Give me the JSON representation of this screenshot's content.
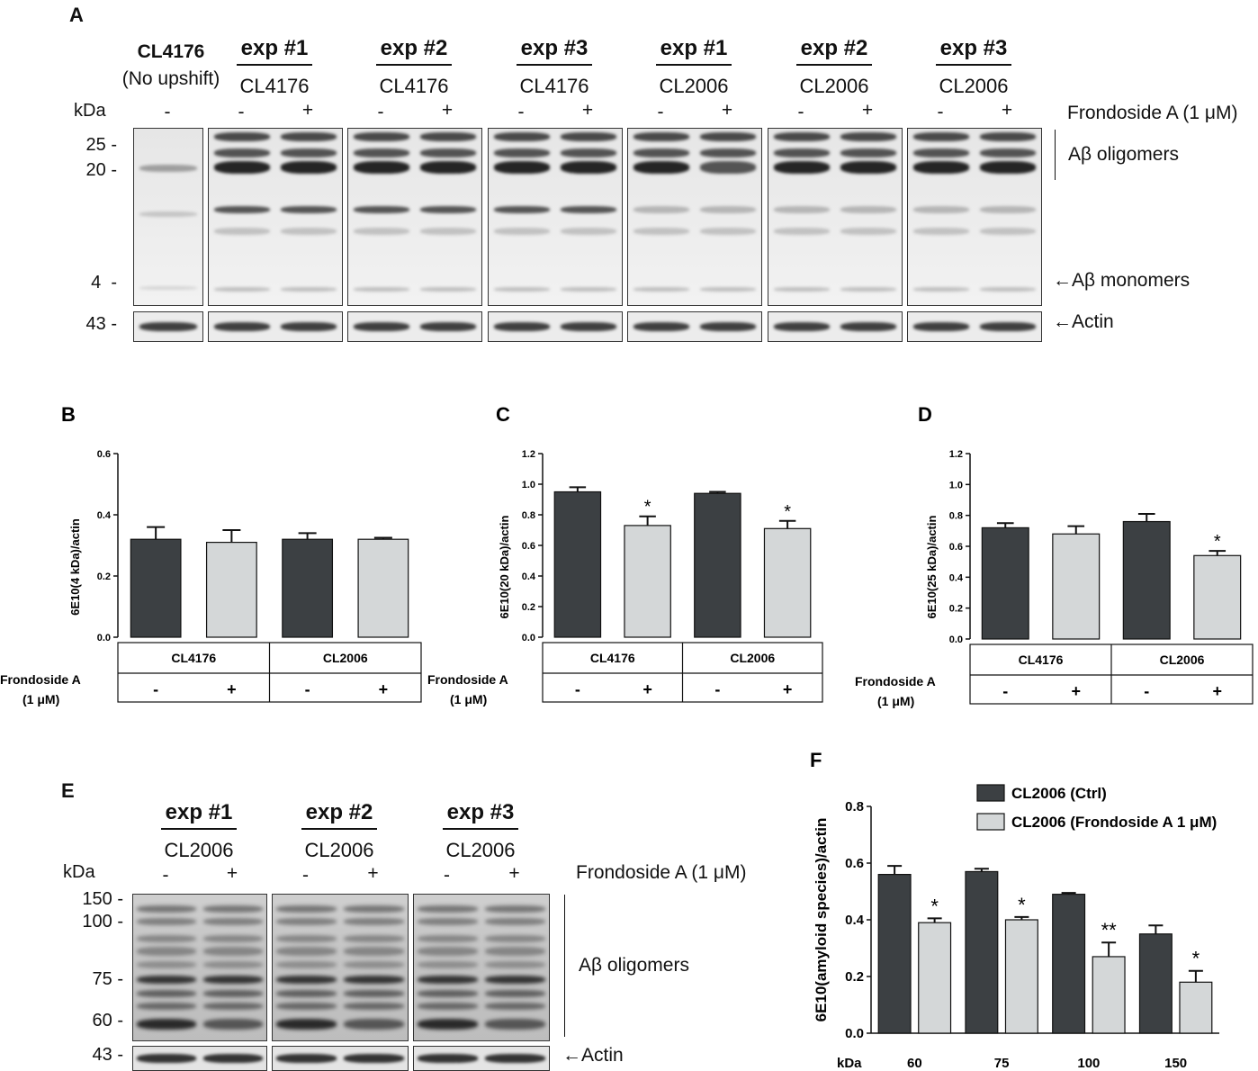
{
  "panel_a": {
    "letter": "A",
    "ctrl_title": "CL4176",
    "ctrl_subtitle": "(No upshift)",
    "groups": [
      {
        "exp": "exp #1",
        "strain": "CL4176"
      },
      {
        "exp": "exp #2",
        "strain": "CL4176"
      },
      {
        "exp": "exp #3",
        "strain": "CL4176"
      },
      {
        "exp": "exp #1",
        "strain": "CL2006"
      },
      {
        "exp": "exp #2",
        "strain": "CL2006"
      },
      {
        "exp": "exp #3",
        "strain": "CL2006"
      }
    ],
    "kda": "kDa",
    "minus": "-",
    "plus": "+",
    "treatment": "Frondoside A (1 μM)",
    "markers": [
      "25 -",
      "20 -",
      "4  -",
      "43 -"
    ],
    "oligomers": "Aβ oligomers",
    "monomers": "←Aβ monomers",
    "actin": "←Actin"
  },
  "panel_e": {
    "letter": "E",
    "groups": [
      {
        "exp": "exp #1",
        "strain": "CL2006"
      },
      {
        "exp": "exp #2",
        "strain": "CL2006"
      },
      {
        "exp": "exp #3",
        "strain": "CL2006"
      }
    ],
    "kda": "kDa",
    "minus": "-",
    "plus": "+",
    "treatment": "Frondoside A (1 μM)",
    "markers": [
      "150 -",
      "100 -",
      "75 -",
      "60 -",
      "43 -"
    ],
    "oligomers": "Aβ oligomers",
    "actin": "←Actin"
  },
  "chart_data": [
    {
      "panel": "B",
      "type": "bar",
      "ylabel": "6E10(4 kDa)/actin",
      "ylim": [
        0,
        0.6
      ],
      "yticks": [
        "0.0",
        "0.2",
        "0.4",
        "0.6"
      ],
      "categories": [
        "CL4176 -",
        "CL4176 +",
        "CL2006 -",
        "CL2006 +"
      ],
      "values": [
        0.32,
        0.31,
        0.32,
        0.32
      ],
      "errors": [
        0.04,
        0.04,
        0.02,
        0.005
      ],
      "colors": [
        "#3c4043",
        "#d4d7d8",
        "#3c4043",
        "#d4d7d8"
      ],
      "significance": [
        "",
        "",
        "",
        ""
      ],
      "table": {
        "strains": [
          "CL4176",
          "CL2006"
        ],
        "treatment_label": [
          "Frondoside A",
          "(1 μM)"
        ],
        "signs": [
          "-",
          "+",
          "-",
          "+"
        ]
      }
    },
    {
      "panel": "C",
      "type": "bar",
      "ylabel": "6E10(20 kDa)/actin",
      "ylim": [
        0,
        1.2
      ],
      "yticks": [
        "0.0",
        "0.2",
        "0.4",
        "0.6",
        "0.8",
        "1.0",
        "1.2"
      ],
      "categories": [
        "CL4176 -",
        "CL4176 +",
        "CL2006 -",
        "CL2006 +"
      ],
      "values": [
        0.95,
        0.73,
        0.94,
        0.71
      ],
      "errors": [
        0.03,
        0.06,
        0.01,
        0.05
      ],
      "colors": [
        "#3c4043",
        "#d4d7d8",
        "#3c4043",
        "#d4d7d8"
      ],
      "significance": [
        "",
        "*",
        "",
        "*"
      ],
      "table": {
        "strains": [
          "CL4176",
          "CL2006"
        ],
        "treatment_label": [
          "Frondoside A",
          "(1 μM)"
        ],
        "signs": [
          "-",
          "+",
          "-",
          "+"
        ]
      }
    },
    {
      "panel": "D",
      "type": "bar",
      "ylabel": "6E10(25 kDa)/actin",
      "ylim": [
        0,
        1.2
      ],
      "yticks": [
        "0.0",
        "0.2",
        "0.4",
        "0.6",
        "0.8",
        "1.0",
        "1.2"
      ],
      "categories": [
        "CL4176 -",
        "CL4176 +",
        "CL2006 -",
        "CL2006 +"
      ],
      "values": [
        0.72,
        0.68,
        0.76,
        0.54
      ],
      "errors": [
        0.03,
        0.05,
        0.05,
        0.03
      ],
      "colors": [
        "#3c4043",
        "#d4d7d8",
        "#3c4043",
        "#d4d7d8"
      ],
      "significance": [
        "",
        "",
        "",
        "*"
      ],
      "table": {
        "strains": [
          "CL4176",
          "CL2006"
        ],
        "treatment_label": [
          "Frondoside A",
          "(1 μM)"
        ],
        "signs": [
          "-",
          "+",
          "-",
          "+"
        ]
      }
    },
    {
      "panel": "F",
      "type": "bar",
      "ylabel": "6E10(amyloid species)/actin",
      "xlabel": "kDa",
      "ylim": [
        0,
        0.8
      ],
      "yticks": [
        "0.0",
        "0.2",
        "0.4",
        "0.6",
        "0.8"
      ],
      "categories": [
        "60",
        "75",
        "100",
        "150"
      ],
      "series": [
        {
          "name": "CL2006 (Ctrl)",
          "values": [
            0.56,
            0.57,
            0.49,
            0.35
          ],
          "errors": [
            0.03,
            0.01,
            0.005,
            0.03
          ],
          "color": "#3c4043"
        },
        {
          "name": "CL2006 (Frondoside A 1 μM)",
          "values": [
            0.39,
            0.4,
            0.27,
            0.18
          ],
          "errors": [
            0.015,
            0.01,
            0.05,
            0.04
          ],
          "color": "#d4d7d8"
        }
      ],
      "significance": [
        "*",
        "*",
        "**",
        "*"
      ]
    }
  ]
}
